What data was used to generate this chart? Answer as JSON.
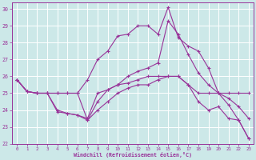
{
  "background_color": "#cce8e8",
  "grid_color": "#ffffff",
  "line_color": "#993399",
  "xlim": [
    -0.5,
    23.5
  ],
  "ylim": [
    22,
    30.4
  ],
  "yticks": [
    22,
    23,
    24,
    25,
    26,
    27,
    28,
    29,
    30
  ],
  "xticks": [
    0,
    1,
    2,
    3,
    4,
    5,
    6,
    7,
    8,
    9,
    10,
    11,
    12,
    13,
    14,
    15,
    16,
    17,
    18,
    19,
    20,
    21,
    22,
    23
  ],
  "xlabel": "Windchill (Refroidissement éolien,°C)",
  "series": [
    [
      25.8,
      25.1,
      25.0,
      25.0,
      23.9,
      23.8,
      23.7,
      23.5,
      25.0,
      25.2,
      25.5,
      25.6,
      25.8,
      26.0,
      26.0,
      26.0,
      26.0,
      25.5,
      25.0,
      25.0,
      25.0,
      25.0,
      25.0,
      25.0
    ],
    [
      25.8,
      25.1,
      25.0,
      25.0,
      25.0,
      25.0,
      25.0,
      25.8,
      27.0,
      27.5,
      28.4,
      28.5,
      29.0,
      29.0,
      28.5,
      30.1,
      28.3,
      27.8,
      27.5,
      26.5,
      25.0,
      24.3,
      23.4,
      22.3
    ],
    [
      25.8,
      25.1,
      25.0,
      25.0,
      25.0,
      25.0,
      25.0,
      23.4,
      24.5,
      25.2,
      25.5,
      26.0,
      26.3,
      26.5,
      26.8,
      29.3,
      28.5,
      27.3,
      26.2,
      25.5,
      25.0,
      24.7,
      24.2,
      23.5
    ],
    [
      25.8,
      25.1,
      25.0,
      25.0,
      24.0,
      23.8,
      23.7,
      23.4,
      24.0,
      24.5,
      25.0,
      25.3,
      25.5,
      25.5,
      25.8,
      26.0,
      26.0,
      25.5,
      24.5,
      24.0,
      24.2,
      23.5,
      23.4,
      22.3
    ]
  ]
}
